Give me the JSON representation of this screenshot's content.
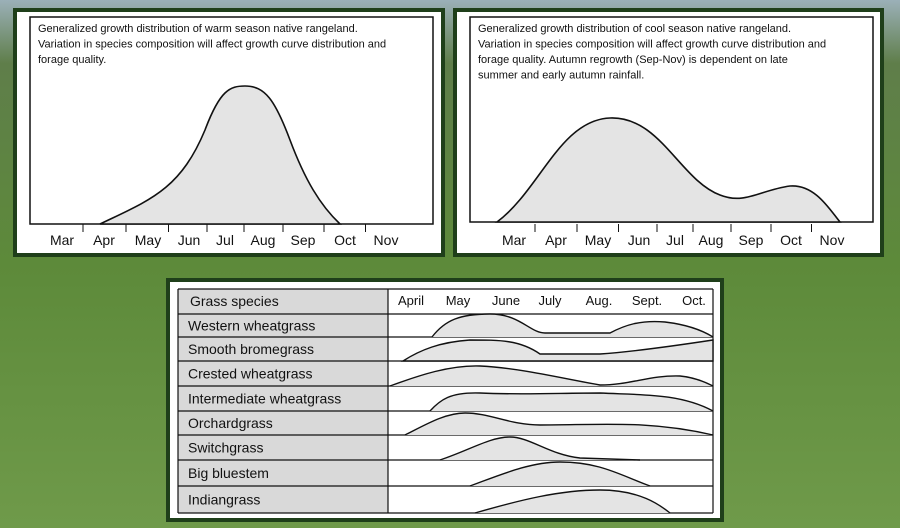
{
  "warm_panel": {
    "description": [
      "Generalized growth distribution of warm season native rangeland.",
      "Variation in species composition will affect growth curve distribution and",
      "forage quality."
    ],
    "months": [
      "Mar",
      "Apr",
      "May",
      "Jun",
      "Jul",
      "Aug",
      "Sep",
      "Oct",
      "Nov"
    ]
  },
  "cool_panel": {
    "description": [
      "Generalized growth distribution of cool season native rangeland.",
      "Variation in species composition will affect growth curve distribution and",
      "forage quality. Autumn regrowth (Sep-Nov) is dependent on late",
      "summer and early autumn rainfall."
    ],
    "months": [
      "Mar",
      "Apr",
      "May",
      "Jun",
      "Jul",
      "Aug",
      "Sep",
      "Oct",
      "Nov"
    ]
  },
  "table": {
    "header": "Grass species",
    "months": [
      "April",
      "May",
      "June",
      "July",
      "Aug.",
      "Sept.",
      "Oct."
    ],
    "rows": [
      "Western wheatgrass",
      "Smooth bromegrass",
      "Crested wheatgrass",
      "Intermediate wheatgrass",
      "Orchardgrass",
      "Switchgrass",
      "Big bluestem",
      "Indiangrass"
    ]
  }
}
